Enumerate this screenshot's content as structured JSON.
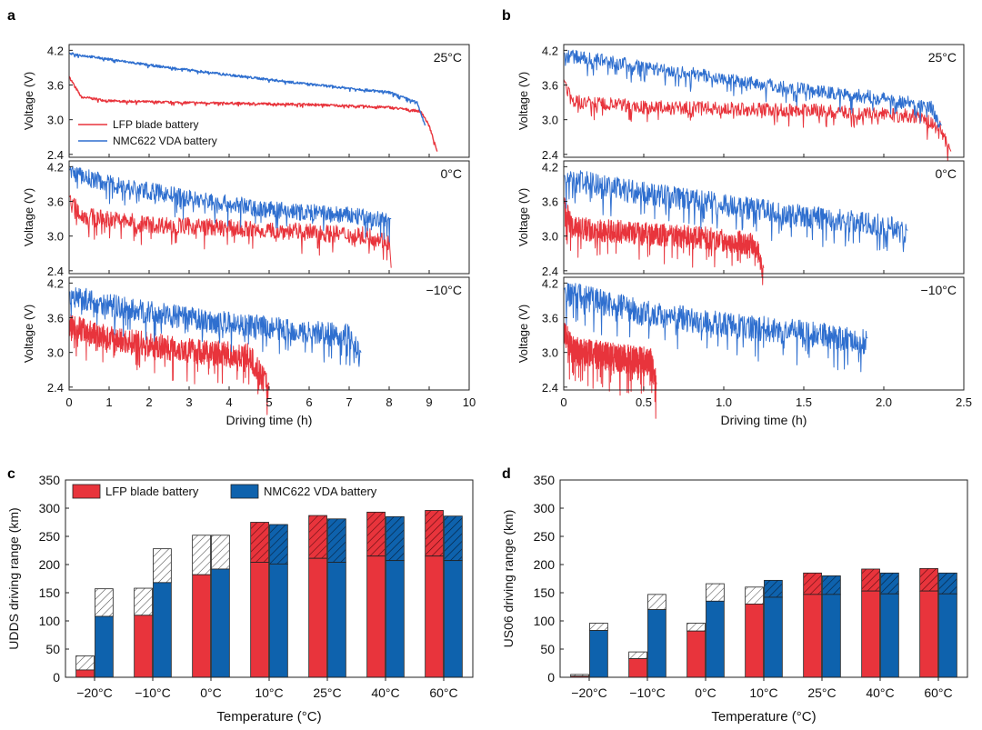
{
  "colors": {
    "lfp": "#e8343c",
    "nmc": "#2f6fcf",
    "nmc_bar": "#0e62ad",
    "axis": "#222222",
    "hatch": "#555555"
  },
  "panel_letters": [
    "a",
    "b",
    "c",
    "d"
  ],
  "voltage_panels": {
    "ylabel": "Voltage (V)",
    "yticks": [
      "2.4",
      "3.0",
      "3.6",
      "4.2"
    ],
    "ylim": [
      2.35,
      4.3
    ],
    "legend": [
      "LFP blade battery",
      "NMC622 VDA battery"
    ],
    "temperatures": [
      "25°C",
      "0°C",
      "−10°C"
    ]
  },
  "chart_data": [
    {
      "id": "a",
      "type": "line",
      "xlabel": "Driving time (h)",
      "ylabel": "Voltage (V)",
      "xlim": [
        0,
        10
      ],
      "xticks": [
        "0",
        "1",
        "2",
        "3",
        "4",
        "5",
        "6",
        "7",
        "8",
        "9",
        "10"
      ],
      "ylim": [
        2.35,
        4.3
      ],
      "yticks": [
        "2.4",
        "3.0",
        "3.6",
        "4.2"
      ],
      "legend_placement": "lower-left of top subplot",
      "subplots": [
        {
          "temperature": "25°C",
          "series": [
            {
              "name": "LFP blade battery",
              "color": "#e8343c",
              "end_time": 9.2,
              "points": [
                [
                  0,
                  3.75
                ],
                [
                  0.3,
                  3.4
                ],
                [
                  1,
                  3.33
                ],
                [
                  3,
                  3.3
                ],
                [
                  6,
                  3.27
                ],
                [
                  8,
                  3.22
                ],
                [
                  8.8,
                  3.15
                ],
                [
                  9.0,
                  2.9
                ],
                [
                  9.2,
                  2.45
                ]
              ],
              "noise": 0.02
            },
            {
              "name": "NMC622 VDA battery",
              "color": "#2f6fcf",
              "end_time": 8.9,
              "points": [
                [
                  0,
                  4.15
                ],
                [
                  2,
                  3.95
                ],
                [
                  4,
                  3.78
                ],
                [
                  6,
                  3.62
                ],
                [
                  8,
                  3.48
                ],
                [
                  8.7,
                  3.3
                ],
                [
                  8.9,
                  2.9
                ]
              ],
              "noise": 0.02
            }
          ]
        },
        {
          "temperature": "0°C",
          "series": [
            {
              "name": "LFP blade battery",
              "color": "#e8343c",
              "end_time": 8.05,
              "points": [
                [
                  0,
                  3.7
                ],
                [
                  0.3,
                  3.4
                ],
                [
                  2,
                  3.25
                ],
                [
                  5,
                  3.15
                ],
                [
                  7.5,
                  3.05
                ],
                [
                  8.0,
                  2.95
                ],
                [
                  8.05,
                  2.45
                ]
              ],
              "noise": 0.15
            },
            {
              "name": "NMC622 VDA battery",
              "color": "#2f6fcf",
              "end_time": 8.05,
              "points": [
                [
                  0,
                  4.15
                ],
                [
                  1,
                  3.95
                ],
                [
                  3,
                  3.7
                ],
                [
                  5,
                  3.5
                ],
                [
                  7,
                  3.4
                ],
                [
                  8.05,
                  3.3
                ]
              ],
              "noise": 0.15
            }
          ]
        },
        {
          "temperature": "−10°C",
          "series": [
            {
              "name": "LFP blade battery",
              "color": "#e8343c",
              "end_time": 5.0,
              "points": [
                [
                  0,
                  3.55
                ],
                [
                  1,
                  3.3
                ],
                [
                  3,
                  3.1
                ],
                [
                  4.5,
                  3.0
                ],
                [
                  5.0,
                  2.45
                ]
              ],
              "noise": 0.22
            },
            {
              "name": "NMC622 VDA battery",
              "color": "#2f6fcf",
              "end_time": 7.3,
              "points": [
                [
                  0,
                  4.05
                ],
                [
                  1.5,
                  3.8
                ],
                [
                  3.5,
                  3.6
                ],
                [
                  5.5,
                  3.45
                ],
                [
                  7.0,
                  3.35
                ],
                [
                  7.3,
                  3.0
                ]
              ],
              "noise": 0.2
            }
          ]
        }
      ]
    },
    {
      "id": "b",
      "type": "line",
      "xlabel": "Driving time (h)",
      "ylabel": "Voltage (V)",
      "xlim": [
        0,
        2.5
      ],
      "xticks": [
        "0",
        "0.5",
        "1.0",
        "1.5",
        "2.0",
        "2.5"
      ],
      "ylim": [
        2.35,
        4.3
      ],
      "yticks": [
        "2.4",
        "3.0",
        "3.6",
        "4.2"
      ],
      "subplots": [
        {
          "temperature": "25°C",
          "series": [
            {
              "name": "LFP blade battery",
              "color": "#e8343c",
              "end_time": 2.42,
              "points": [
                [
                  0,
                  3.7
                ],
                [
                  0.05,
                  3.35
                ],
                [
                  0.5,
                  3.25
                ],
                [
                  1.5,
                  3.2
                ],
                [
                  2.2,
                  3.1
                ],
                [
                  2.35,
                  2.9
                ],
                [
                  2.42,
                  2.45
                ]
              ],
              "noise": 0.12
            },
            {
              "name": "NMC622 VDA battery",
              "color": "#2f6fcf",
              "end_time": 2.36,
              "points": [
                [
                  0,
                  4.15
                ],
                [
                  0.5,
                  3.95
                ],
                [
                  1.0,
                  3.75
                ],
                [
                  1.5,
                  3.55
                ],
                [
                  2.0,
                  3.4
                ],
                [
                  2.3,
                  3.25
                ],
                [
                  2.36,
                  2.9
                ]
              ],
              "noise": 0.12
            }
          ]
        },
        {
          "temperature": "0°C",
          "series": [
            {
              "name": "LFP blade battery",
              "color": "#e8343c",
              "end_time": 1.25,
              "points": [
                [
                  0,
                  3.6
                ],
                [
                  0.05,
                  3.2
                ],
                [
                  0.5,
                  3.1
                ],
                [
                  1.0,
                  3.0
                ],
                [
                  1.2,
                  2.9
                ],
                [
                  1.25,
                  2.45
                ]
              ],
              "noise": 0.2
            },
            {
              "name": "NMC622 VDA battery",
              "color": "#2f6fcf",
              "end_time": 2.15,
              "points": [
                [
                  0,
                  4.05
                ],
                [
                  0.5,
                  3.8
                ],
                [
                  1.0,
                  3.6
                ],
                [
                  1.5,
                  3.4
                ],
                [
                  2.0,
                  3.25
                ],
                [
                  2.15,
                  3.1
                ]
              ],
              "noise": 0.2
            }
          ]
        },
        {
          "temperature": "−10°C",
          "series": [
            {
              "name": "LFP blade battery",
              "color": "#e8343c",
              "end_time": 0.58,
              "points": [
                [
                  0,
                  3.5
                ],
                [
                  0.05,
                  3.1
                ],
                [
                  0.3,
                  3.0
                ],
                [
                  0.55,
                  2.9
                ],
                [
                  0.58,
                  2.45
                ]
              ],
              "noise": 0.25
            },
            {
              "name": "NMC622 VDA battery",
              "color": "#2f6fcf",
              "end_time": 1.9,
              "points": [
                [
                  0,
                  4.1
                ],
                [
                  0.5,
                  3.75
                ],
                [
                  1.0,
                  3.55
                ],
                [
                  1.5,
                  3.4
                ],
                [
                  1.9,
                  3.25
                ]
              ],
              "noise": 0.22
            }
          ]
        }
      ]
    },
    {
      "id": "c",
      "type": "bar",
      "xlabel": "Temperature (°C)",
      "ylabel": "UDDS driving range (km)",
      "ylim": [
        0,
        350
      ],
      "yticks": [
        "0",
        "50",
        "100",
        "150",
        "200",
        "250",
        "300",
        "350"
      ],
      "categories": [
        "−20°C",
        "−10°C",
        "0°C",
        "10°C",
        "25°C",
        "40°C",
        "60°C"
      ],
      "legend_placement": "top-left",
      "series": [
        {
          "name": "LFP blade battery",
          "color": "#e8343c",
          "values": [
            13,
            110,
            182,
            204,
            211,
            215,
            215
          ],
          "hatched_totals": [
            38,
            158,
            252,
            275,
            287,
            293,
            296
          ]
        },
        {
          "name": "NMC622 VDA battery",
          "color": "#0e62ad",
          "values": [
            108,
            168,
            192,
            201,
            204,
            207,
            207
          ],
          "hatched_totals": [
            157,
            228,
            252,
            271,
            281,
            285,
            286
          ]
        }
      ]
    },
    {
      "id": "d",
      "type": "bar",
      "xlabel": "Temperature (°C)",
      "ylabel": "US06 driving range (km)",
      "ylim": [
        0,
        350
      ],
      "yticks": [
        "0",
        "50",
        "100",
        "150",
        "200",
        "250",
        "300",
        "350"
      ],
      "categories": [
        "−20°C",
        "−10°C",
        "0°C",
        "10°C",
        "25°C",
        "40°C",
        "60°C"
      ],
      "series": [
        {
          "name": "LFP blade battery",
          "color": "#e8343c",
          "values": [
            2,
            33,
            82,
            130,
            147,
            153,
            153
          ],
          "hatched_totals": [
            5,
            45,
            96,
            160,
            185,
            192,
            193
          ]
        },
        {
          "name": "NMC622 VDA battery",
          "color": "#0e62ad",
          "values": [
            83,
            120,
            135,
            142,
            147,
            148,
            148
          ],
          "hatched_totals": [
            96,
            147,
            166,
            172,
            180,
            185,
            185
          ]
        }
      ]
    }
  ]
}
